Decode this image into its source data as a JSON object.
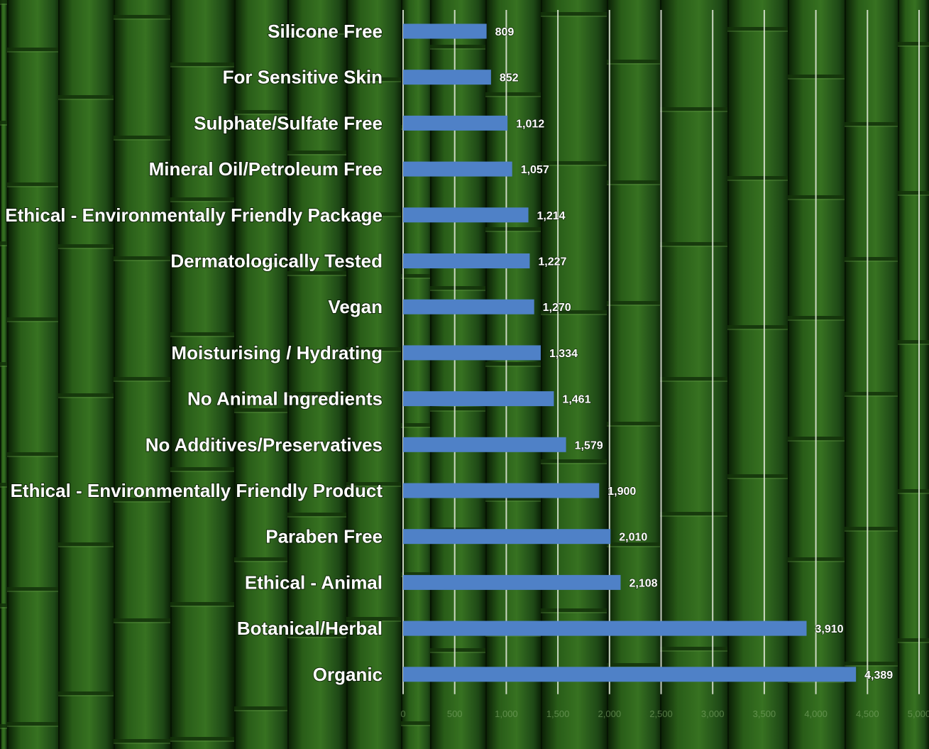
{
  "chart_data": {
    "type": "bar",
    "orientation": "horizontal",
    "categories": [
      "Silicone Free",
      "For Sensitive Skin",
      "Sulphate/Sulfate Free",
      "Mineral Oil/Petroleum Free",
      "Ethical - Environmentally Friendly Package",
      "Dermatologically Tested",
      "Vegan",
      "Moisturising / Hydrating",
      "No Animal Ingredients",
      "No Additives/Preservatives",
      "Ethical - Environmentally Friendly Product",
      "Paraben Free",
      "Ethical - Animal",
      "Botanical/Herbal",
      "Organic"
    ],
    "values": [
      809,
      852,
      1012,
      1057,
      1214,
      1227,
      1270,
      1334,
      1461,
      1579,
      1900,
      2010,
      2108,
      3910,
      4389
    ],
    "value_labels": [
      "809",
      "852",
      "1,012",
      "1,057",
      "1,214",
      "1,227",
      "1,270",
      "1,334",
      "1,461",
      "1,579",
      "1,900",
      "2,010",
      "2,108",
      "3,910",
      "4,389"
    ],
    "xlim": [
      0,
      5000
    ],
    "x_ticks": [
      "0",
      "500",
      "1,000",
      "1,500",
      "2,000",
      "2,500",
      "3,000",
      "3,500",
      "4,000",
      "4,500",
      "5,000"
    ],
    "grid": true,
    "legend": "none",
    "title": "",
    "xlabel": "",
    "ylabel": "",
    "colors": {
      "bar": "#4f81c7",
      "gridline": "#e6ecdf",
      "background": "#1f4a12"
    }
  }
}
